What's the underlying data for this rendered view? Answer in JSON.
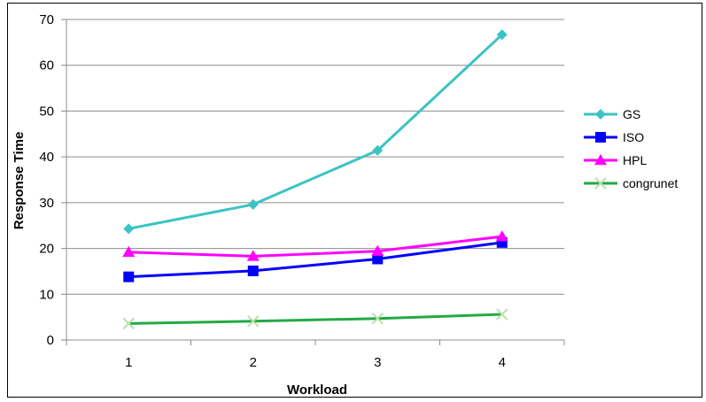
{
  "chart_data": {
    "type": "line",
    "title": "",
    "xlabel": "Workload",
    "ylabel": "Response Time",
    "categories": [
      "1",
      "2",
      "3",
      "4"
    ],
    "ylim": [
      0,
      70
    ],
    "yticks": [
      "0",
      "10",
      "20",
      "30",
      "40",
      "50",
      "60",
      "70"
    ],
    "grid": "horizontal",
    "legend_position": "right",
    "series": [
      {
        "name": "GS",
        "values": [
          24.3,
          29.6,
          41.4,
          66.7
        ],
        "color": "#3cc3c3",
        "marker": "diamond"
      },
      {
        "name": "ISO",
        "values": [
          13.8,
          15.1,
          17.7,
          21.3
        ],
        "color": "#0000ff",
        "marker": "square"
      },
      {
        "name": "HPL",
        "values": [
          19.2,
          18.3,
          19.4,
          22.6
        ],
        "color": "#ff00ff",
        "marker": "triangle"
      },
      {
        "name": "congrunet",
        "values": [
          3.6,
          4.1,
          4.7,
          5.6
        ],
        "color": "#22aa44",
        "marker": "x",
        "marker_color": "#b8e0a8"
      }
    ]
  }
}
